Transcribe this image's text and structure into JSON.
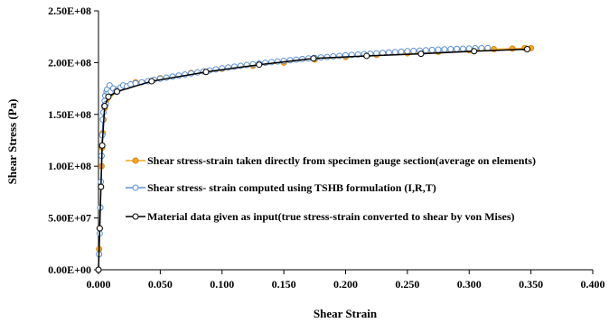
{
  "chart_data": {
    "type": "line",
    "xlabel": "Shear Strain",
    "ylabel": "Shear Stress (Pa)",
    "xlim": [
      0,
      0.4
    ],
    "ylim": [
      0,
      250000000
    ],
    "xticks": [
      0,
      0.05,
      0.1,
      0.15,
      0.2,
      0.25,
      0.3,
      0.35,
      0.4
    ],
    "xtick_labels": [
      "0.000",
      "0.050",
      "0.100",
      "0.150",
      "0.200",
      "0.250",
      "0.300",
      "0.350",
      "0.400"
    ],
    "yticks": [
      0,
      50000000,
      100000000,
      150000000,
      200000000,
      250000000
    ],
    "ytick_labels": [
      "0.00E+00",
      "5.00E+07",
      "1.00E+08",
      "1.50E+08",
      "2.00E+08",
      "2.50E+08"
    ],
    "grid": false,
    "legend_position": "center-right",
    "series": [
      {
        "name": "Shear stress-strain taken directly from specimen gauge section(average on elements)",
        "color": "#f5a623",
        "marker": "circle-filled",
        "x": [
          0.0,
          0.0005,
          0.001,
          0.0015,
          0.002,
          0.0025,
          0.003,
          0.0035,
          0.004,
          0.005,
          0.006,
          0.007,
          0.008,
          0.01,
          0.015,
          0.02,
          0.03,
          0.05,
          0.075,
          0.1,
          0.125,
          0.15,
          0.175,
          0.2,
          0.225,
          0.25,
          0.275,
          0.3,
          0.32,
          0.335,
          0.345,
          0.35
        ],
        "y": [
          0,
          20000000,
          40000000,
          60000000,
          80000000,
          100000000,
          118000000,
          132000000,
          145000000,
          156000000,
          162000000,
          165000000,
          167000000,
          170000000,
          174000000,
          177000000,
          181000000,
          185000000,
          190000000,
          194000000,
          197000000,
          200000000,
          203000000,
          205500000,
          207500000,
          209000000,
          210500000,
          212000000,
          213000000,
          213500000,
          214000000,
          214000000
        ]
      },
      {
        "name": "Shear stress- strain computed using TSHB formulation (I,R,T)",
        "color": "#5b8fd0",
        "marker": "circle-open",
        "x": [
          0.0,
          0.0005,
          0.001,
          0.0015,
          0.002,
          0.0025,
          0.003,
          0.0035,
          0.004,
          0.0045,
          0.005,
          0.0055,
          0.006,
          0.0065,
          0.007,
          0.008,
          0.009,
          0.01,
          0.012,
          0.014,
          0.016,
          0.018,
          0.02,
          0.023,
          0.026,
          0.03,
          0.035,
          0.04,
          0.045,
          0.05,
          0.055,
          0.06,
          0.065,
          0.07,
          0.075,
          0.08,
          0.085,
          0.09,
          0.095,
          0.1,
          0.105,
          0.11,
          0.115,
          0.12,
          0.125,
          0.13,
          0.135,
          0.14,
          0.145,
          0.15,
          0.155,
          0.16,
          0.165,
          0.17,
          0.175,
          0.18,
          0.185,
          0.19,
          0.195,
          0.2,
          0.205,
          0.21,
          0.215,
          0.22,
          0.225,
          0.23,
          0.235,
          0.24,
          0.245,
          0.25,
          0.255,
          0.26,
          0.265,
          0.27,
          0.275,
          0.28,
          0.285,
          0.29,
          0.295,
          0.3,
          0.305,
          0.31,
          0.315
        ],
        "y": [
          0,
          15000000,
          35000000,
          60000000,
          85000000,
          110000000,
          130000000,
          145000000,
          152000000,
          158000000,
          163000000,
          168000000,
          160000000,
          172000000,
          174000000,
          170000000,
          178000000,
          172000000,
          175000000,
          172000000,
          174000000,
          176000000,
          178000000,
          177000000,
          179000000,
          180000000,
          181000000,
          182000000,
          183500000,
          184500000,
          185500000,
          186500000,
          187500000,
          188500000,
          189500000,
          190500000,
          191500000,
          192500000,
          193500000,
          194500000,
          195300000,
          196100000,
          196900000,
          197700000,
          198400000,
          199100000,
          199800000,
          200500000,
          201100000,
          201700000,
          202300000,
          202900000,
          203500000,
          204000000,
          204500000,
          205000000,
          205500000,
          206000000,
          206500000,
          207000000,
          207400000,
          207800000,
          208200000,
          208600000,
          209000000,
          209400000,
          209800000,
          210200000,
          210600000,
          211000000,
          211300000,
          211600000,
          211900000,
          212200000,
          212500000,
          212800000,
          213000000,
          213200000,
          213400000,
          213600000,
          213800000,
          213900000,
          214000000
        ]
      },
      {
        "name": "Material data given as input(true stress-strain converted to shear by von Mises)",
        "color": "#000000",
        "marker": "circle-open",
        "x": [
          0.0,
          0.001,
          0.002,
          0.003,
          0.005,
          0.008,
          0.015,
          0.043,
          0.087,
          0.13,
          0.174,
          0.217,
          0.261,
          0.304,
          0.347
        ],
        "y": [
          0,
          40000000,
          80000000,
          120000000,
          158000000,
          167000000,
          172000000,
          182000000,
          191000000,
          198000000,
          204000000,
          206500000,
          208500000,
          211000000,
          213000000
        ]
      }
    ]
  }
}
